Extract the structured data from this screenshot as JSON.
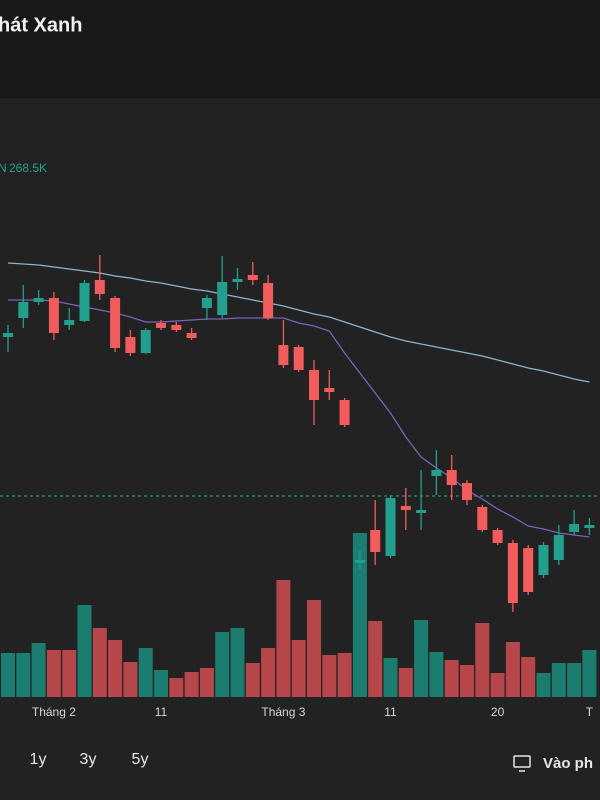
{
  "header": {
    "title": "hát Xanh"
  },
  "chart_data": {
    "type": "candlestick",
    "legend": {
      "prefix": "N",
      "volume": "268.5K"
    },
    "categories": [
      null,
      null,
      null,
      "Tháng 2",
      null,
      null,
      null,
      null,
      null,
      null,
      "11",
      null,
      null,
      null,
      null,
      null,
      null,
      null,
      "Tháng 3",
      null,
      null,
      null,
      null,
      null,
      null,
      "11",
      null,
      null,
      null,
      null,
      null,
      null,
      "20",
      null,
      null,
      null,
      null,
      null,
      "T"
    ],
    "open": [
      363,
      382,
      398,
      402,
      375,
      379,
      420,
      402,
      363,
      347,
      377,
      375,
      367,
      392,
      385,
      418,
      425,
      417,
      355,
      353,
      330,
      312,
      300,
      137,
      170,
      144,
      194,
      187,
      224,
      230,
      217,
      193,
      170,
      157,
      152,
      125,
      140,
      168,
      172
    ],
    "high": [
      375,
      415,
      410,
      408,
      392,
      420,
      445,
      404,
      370,
      372,
      380,
      378,
      372,
      405,
      444,
      432,
      438,
      425,
      380,
      355,
      340,
      330,
      302,
      150,
      200,
      205,
      212,
      230,
      250,
      245,
      220,
      195,
      172,
      160,
      155,
      158,
      175,
      190,
      182
    ],
    "low": [
      348,
      372,
      395,
      360,
      370,
      378,
      400,
      348,
      344,
      346,
      370,
      368,
      360,
      380,
      382,
      410,
      415,
      380,
      332,
      328,
      275,
      300,
      273,
      130,
      135,
      142,
      170,
      170,
      205,
      200,
      195,
      168,
      155,
      88,
      105,
      122,
      135,
      165,
      165
    ],
    "close": [
      367,
      398,
      402,
      367,
      380,
      417,
      406,
      352,
      347,
      370,
      372,
      370,
      362,
      402,
      418,
      421,
      420,
      382,
      335,
      330,
      300,
      308,
      275,
      140,
      148,
      202,
      190,
      190,
      230,
      215,
      200,
      170,
      157,
      97,
      108,
      155,
      165,
      176,
      175
    ],
    "up_color": "#22a08d",
    "down_color": "#f25c5c",
    "ylim": [
      0,
      700
    ],
    "lines": [
      {
        "color": "#8fb3c8",
        "values": [
          437,
          436,
          435,
          433,
          431,
          429,
          427,
          424,
          422,
          419,
          417,
          414,
          411,
          409,
          406,
          403,
          400,
          397,
          394,
          390,
          386,
          383,
          378,
          373,
          368,
          363,
          359,
          356,
          353,
          350,
          347,
          344,
          340,
          336,
          332,
          329,
          325,
          321,
          318
        ]
      },
      {
        "color": "#7a63b8",
        "values": [
          400,
          400,
          400,
          399,
          396,
          393,
          390,
          387,
          383,
          378,
          378,
          379,
          380,
          381,
          381,
          382,
          382,
          382,
          382,
          377,
          374,
          369,
          347,
          327,
          307,
          287,
          263,
          243,
          232,
          222,
          210,
          201,
          191,
          183,
          174,
          171,
          167,
          165,
          163
        ]
      }
    ],
    "reference_line": {
      "value": 204,
      "color": "#2aa198"
    },
    "volume": {
      "values": [
        44,
        44,
        54,
        47,
        47,
        92,
        69,
        57,
        35,
        49,
        27,
        19,
        25,
        29,
        65,
        69,
        34,
        49,
        117,
        57,
        97,
        42,
        44,
        164,
        76,
        39,
        29,
        77,
        45,
        37,
        32,
        74,
        24,
        55,
        40,
        24,
        34,
        34,
        47
      ],
      "colors": [
        "#1b7d70",
        "#1b7d70",
        "#1b7d70",
        "#b5474a",
        "#b5474a",
        "#1b7d70",
        "#b5474a",
        "#b5474a",
        "#b5474a",
        "#1b7d70",
        "#1b7d70",
        "#b5474a",
        "#b5474a",
        "#b5474a",
        "#1b7d70",
        "#1b7d70",
        "#b5474a",
        "#b5474a",
        "#b5474a",
        "#b5474a",
        "#b5474a",
        "#b5474a",
        "#b5474a",
        "#1b7d70",
        "#b5474a",
        "#1b7d70",
        "#b5474a",
        "#1b7d70",
        "#1b7d70",
        "#b5474a",
        "#b5474a",
        "#b5474a",
        "#b5474a",
        "#b5474a",
        "#b5474a",
        "#1b7d70",
        "#1b7d70",
        "#1b7d70",
        "#1b7d70"
      ],
      "ylim": [
        0,
        200
      ]
    }
  },
  "footer": {
    "ranges": [
      "1y",
      "3y",
      "5y"
    ],
    "action": "Vào ph"
  }
}
